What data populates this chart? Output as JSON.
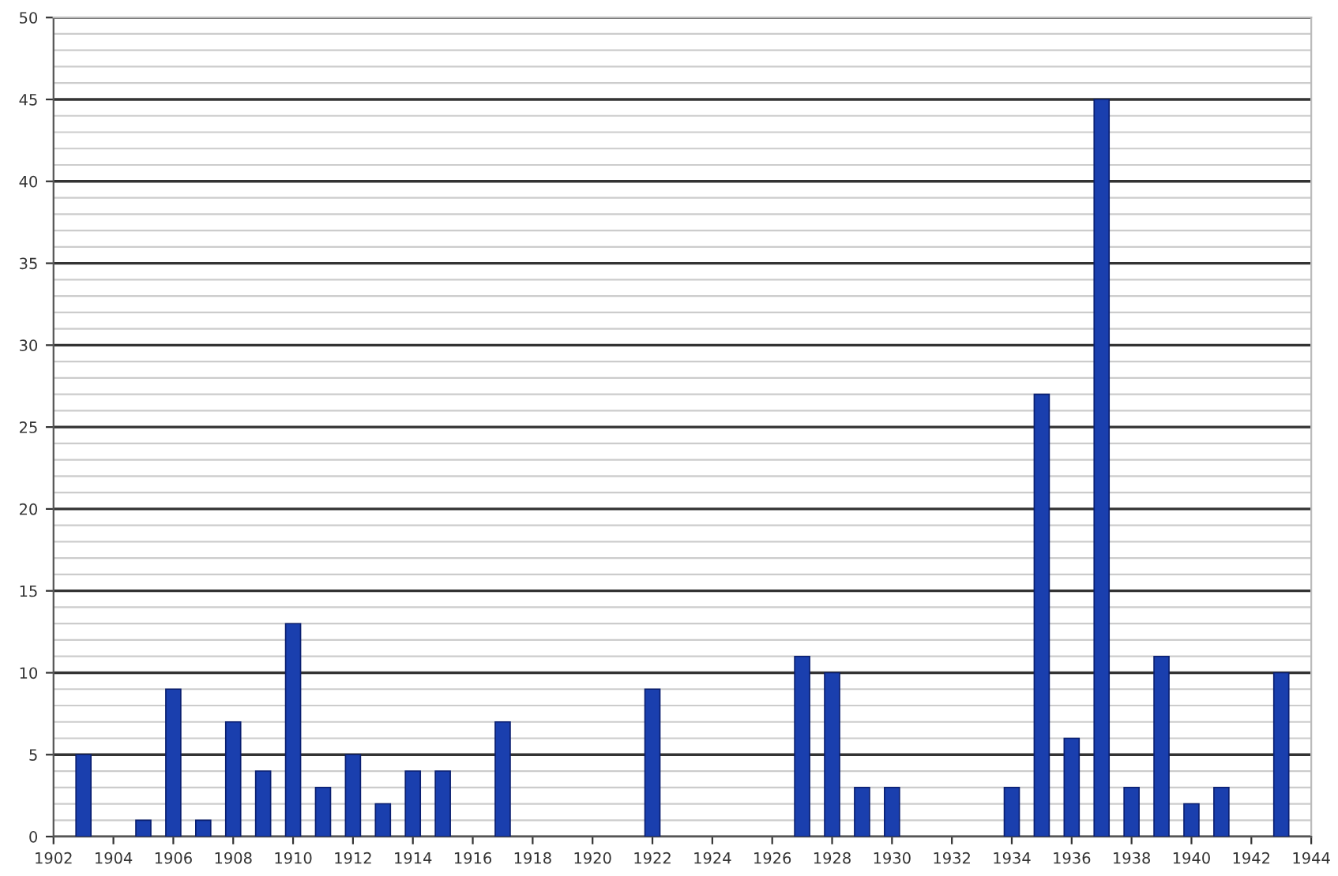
{
  "chart_data": {
    "type": "bar",
    "x": [
      1903,
      1905,
      1906,
      1907,
      1908,
      1909,
      1910,
      1911,
      1912,
      1913,
      1914,
      1915,
      1917,
      1922,
      1927,
      1928,
      1929,
      1930,
      1934,
      1935,
      1936,
      1937,
      1938,
      1939,
      1940,
      1941,
      1943
    ],
    "values": [
      5,
      1,
      9,
      1,
      7,
      4,
      13,
      3,
      5,
      2,
      4,
      4,
      7,
      9,
      11,
      10,
      3,
      3,
      3,
      27,
      6,
      45,
      3,
      11,
      2,
      3,
      10
    ],
    "color": "#1a3fae",
    "xlim": [
      1902,
      1944
    ],
    "xticks": [
      1902,
      1904,
      1906,
      1908,
      1910,
      1912,
      1914,
      1916,
      1918,
      1920,
      1922,
      1924,
      1926,
      1928,
      1930,
      1932,
      1934,
      1936,
      1938,
      1940,
      1942,
      1944
    ],
    "ylim": [
      0,
      50
    ],
    "yticks": [
      0,
      5,
      10,
      15,
      20,
      25,
      30,
      35,
      40,
      45,
      50
    ],
    "grid": "y"
  }
}
